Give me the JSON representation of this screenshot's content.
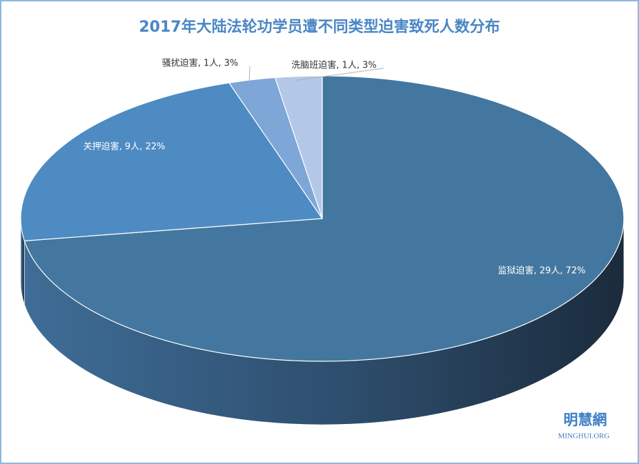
{
  "chart_data": {
    "type": "pie",
    "three_d": true,
    "title": "2017年大陆法轮功学员遭不同类型迫害致死人数分布",
    "categories": [
      "监狱迫害",
      "关押迫害",
      "骚扰迫害",
      "洗脑班迫害"
    ],
    "values": [
      29,
      9,
      1,
      1
    ],
    "value_labels": [
      "监狱迫害, 29人, 72%",
      "关押迫害, 9人, 22%",
      "骚扰迫害, 1人, 3%",
      "洗脑班迫害, 1人, 3%"
    ],
    "colors": [
      "#44779f",
      "#4e8bc3",
      "#7ea6d6",
      "#b3c8e6"
    ],
    "label_colors": [
      "#ffffff",
      "#ffffff",
      "#333333",
      "#333333"
    ]
  },
  "watermark": {
    "name": "明慧網",
    "site": "MINGHUI.ORG"
  }
}
